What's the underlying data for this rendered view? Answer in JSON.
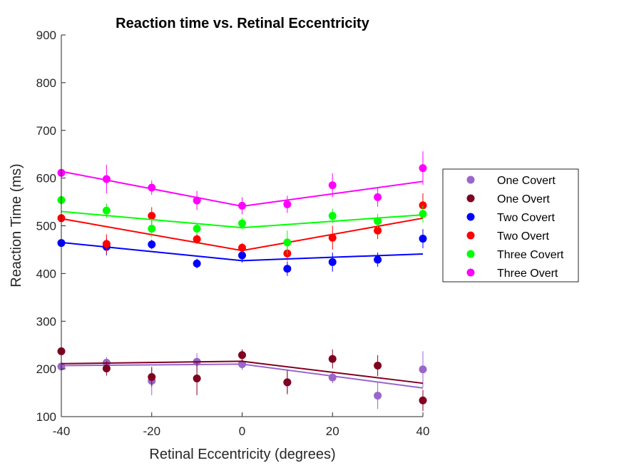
{
  "chart_data": {
    "type": "scatter",
    "title": "Reaction time vs. Retinal Eccentricity",
    "xlabel": "Retinal Eccentricity (degrees)",
    "ylabel": "Reaction Time (ms)",
    "xlim": [
      -40,
      40
    ],
    "ylim": [
      100,
      900
    ],
    "xticks": [
      -40,
      -20,
      0,
      20,
      40
    ],
    "yticks": [
      100,
      200,
      300,
      400,
      500,
      600,
      700,
      800,
      900
    ],
    "grid": false,
    "legend_position": "right",
    "x": [
      -40,
      -30,
      -20,
      -10,
      0,
      10,
      20,
      30,
      40
    ],
    "series": [
      {
        "name": "One Covert",
        "color": "#9966cc",
        "values": [
          205,
          213,
          175,
          215,
          210,
          172,
          182,
          144,
          199
        ],
        "errors": [
          40,
          12,
          30,
          18,
          12,
          22,
          12,
          28,
          38
        ],
        "fit": [
          [
            -40,
            207
          ],
          [
            0,
            210
          ],
          [
            40,
            160
          ]
        ]
      },
      {
        "name": "One Overt",
        "color": "#800020",
        "values": [
          237,
          201,
          183,
          180,
          229,
          172,
          221,
          207,
          134
        ],
        "errors": [
          18,
          15,
          20,
          35,
          12,
          25,
          20,
          22,
          22
        ],
        "fit": [
          [
            -40,
            211
          ],
          [
            0,
            216
          ],
          [
            40,
            170
          ]
        ]
      },
      {
        "name": "Two Covert",
        "color": "#0000ff",
        "values": [
          464,
          456,
          461,
          421,
          438,
          410,
          424,
          429,
          473
        ],
        "errors": [
          15,
          18,
          10,
          10,
          15,
          15,
          20,
          15,
          20
        ],
        "fit": [
          [
            -40,
            465
          ],
          [
            0,
            427
          ],
          [
            40,
            441
          ]
        ]
      },
      {
        "name": "Two Overt",
        "color": "#ff0000",
        "values": [
          516,
          462,
          521,
          472,
          454,
          442,
          475,
          490,
          543
        ],
        "errors": [
          20,
          20,
          18,
          10,
          10,
          15,
          25,
          18,
          25
        ],
        "fit": [
          [
            -40,
            515
          ],
          [
            0,
            448
          ],
          [
            40,
            516
          ]
        ]
      },
      {
        "name": "Three Covert",
        "color": "#00ff00",
        "values": [
          554,
          532,
          494,
          494,
          505,
          465,
          521,
          510,
          525
        ],
        "errors": [
          20,
          15,
          18,
          12,
          12,
          25,
          15,
          15,
          18
        ],
        "fit": [
          [
            -40,
            530
          ],
          [
            0,
            496
          ],
          [
            40,
            523
          ]
        ]
      },
      {
        "name": "Three Overt",
        "color": "#ff00ff",
        "values": [
          611,
          598,
          580,
          553,
          542,
          545,
          585,
          560,
          621
        ],
        "errors": [
          35,
          30,
          15,
          20,
          18,
          18,
          25,
          20,
          35
        ],
        "fit": [
          [
            -40,
            614
          ],
          [
            0,
            541
          ],
          [
            40,
            593
          ]
        ]
      }
    ]
  }
}
